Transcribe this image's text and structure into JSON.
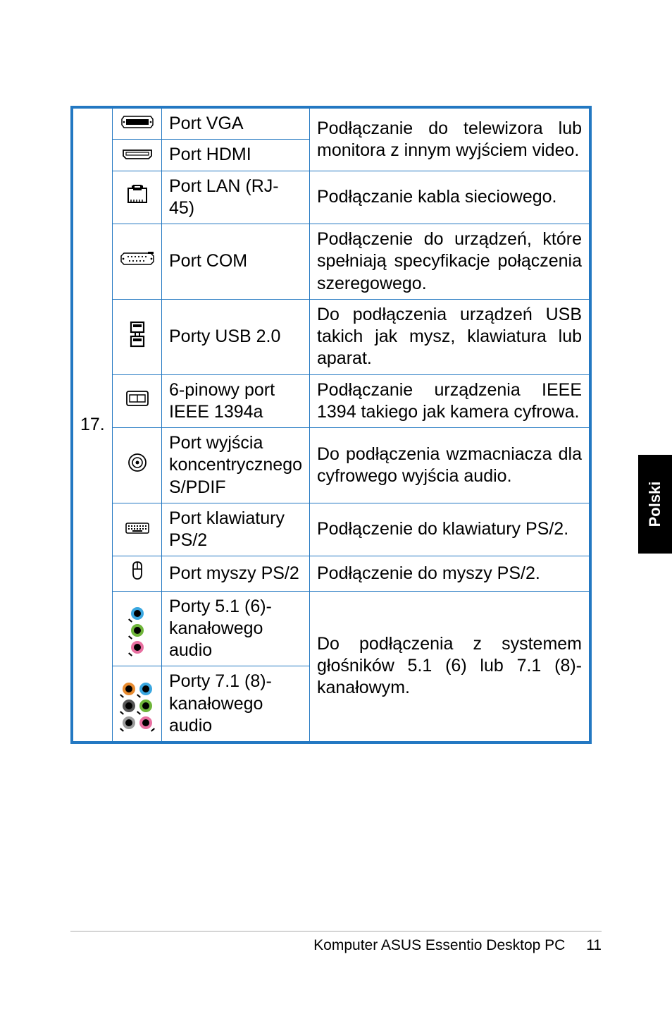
{
  "colors": {
    "border": "#2378c2",
    "text": "#000000",
    "bg": "#ffffff",
    "tab_bg": "#000000",
    "tab_text": "#ffffff",
    "jack_blue": "#3aa7e0",
    "jack_green": "#6fb53a",
    "jack_pink": "#e86fa0",
    "jack_orange": "#e88b2f",
    "jack_black": "#565656",
    "jack_gray": "#9c9c9c"
  },
  "index_number": "17.",
  "rows": [
    {
      "icon": "vga",
      "name": "Port VGA",
      "desc": "Podłączanie do telewizora lub monitora z innym wyjściem video.",
      "desc_rowspan": 2
    },
    {
      "icon": "hdmi",
      "name": "Port HDMI"
    },
    {
      "icon": "lan",
      "name": "Port LAN (RJ-45)",
      "desc": "Podłączanie kabla sieciowego."
    },
    {
      "icon": "com",
      "name": "Port COM",
      "desc": "Podłączenie do urządzeń, które spełniają specyfikacje połączenia szeregowego."
    },
    {
      "icon": "usb",
      "name": "Porty USB 2.0",
      "desc": "Do podłączenia urządzeń USB takich jak mysz, klawiatura lub aparat."
    },
    {
      "icon": "ieee1394",
      "name": "6-pinowy port IEEE 1394a",
      "desc": "Podłączanie urządzenia IEEE 1394 takiego jak kamera cyfrowa."
    },
    {
      "icon": "spdif",
      "name": "Port wyjścia koncentrycz­nego S/PDIF",
      "desc": "Do podłączenia wzmacniacza dla cyfrowego wyjścia audio."
    },
    {
      "icon": "ps2kb",
      "name": "Port klawia­tury PS/2",
      "desc": "Podłączenie do klawiatury PS/2."
    },
    {
      "icon": "ps2mouse",
      "name": "Port myszy PS/2",
      "desc": "Podłączenie do myszy PS/2."
    },
    {
      "icon": "audio51",
      "name": "Porty 5.1 (6)-kanałowego audio",
      "desc": "Do podłączenia z systemem głośników 5.1 (6) lub 7.1 (8)-kanałowym.",
      "desc_rowspan": 2
    },
    {
      "icon": "audio71",
      "name": "Porty 7.1 (8)-kanałowego audio"
    }
  ],
  "side_tab": "Polski",
  "footer_text": "Komputer ASUS Essentio Desktop PC",
  "page_number": "11"
}
